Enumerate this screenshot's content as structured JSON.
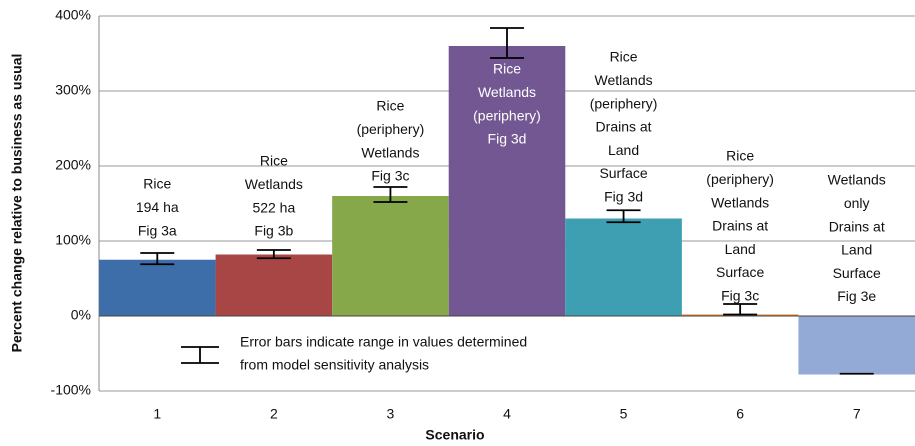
{
  "chart_data": {
    "type": "bar",
    "x_label": "Scenario",
    "y_label": "Percent change relative to business as usual",
    "categories": [
      "1",
      "2",
      "3",
      "4",
      "5",
      "6",
      "7"
    ],
    "values": [
      75,
      82,
      160,
      360,
      130,
      2,
      -78
    ],
    "error_low": [
      69,
      77,
      152,
      344,
      125,
      2,
      -77
    ],
    "error_high": [
      84,
      88,
      172,
      384,
      141,
      16,
      -77
    ],
    "colors": [
      "#3d6ea9",
      "#a84646",
      "#87a84a",
      "#725793",
      "#3e9fb3",
      "#dc7b2a",
      "#93a9d6"
    ],
    "bar_labels": [
      [
        "Rice",
        "194 ha",
        "Fig 3a"
      ],
      [
        "Rice",
        "Wetlands",
        "522 ha",
        "Fig 3b"
      ],
      [
        "Rice",
        "(periphery)",
        "Wetlands",
        "Fig 3c"
      ],
      [
        "Rice",
        "Wetlands",
        "(periphery)",
        "Fig 3d"
      ],
      [
        "Rice",
        "Wetlands",
        "(periphery)",
        "Drains at",
        "Land",
        "Surface",
        "Fig 3d"
      ],
      [
        "Rice",
        "(periphery)",
        "Wetlands",
        "Drains at",
        "Land",
        "Surface",
        "Fig 3c"
      ],
      [
        "Wetlands",
        "only",
        "Drains at",
        "Land",
        "Surface",
        "Fig 3e"
      ]
    ],
    "legend_note": [
      "Error bars indicate range in values determined",
      "from model sensitivity analysis"
    ],
    "ylim": [
      -100,
      400
    ],
    "yticks": [
      {
        "value": -100,
        "label": "-100%"
      },
      {
        "value": 0,
        "label": "0%"
      },
      {
        "value": 100,
        "label": "100%"
      },
      {
        "value": 200,
        "label": "200%"
      },
      {
        "value": 300,
        "label": "300%"
      },
      {
        "value": 400,
        "label": "400%"
      }
    ],
    "grid": true
  }
}
